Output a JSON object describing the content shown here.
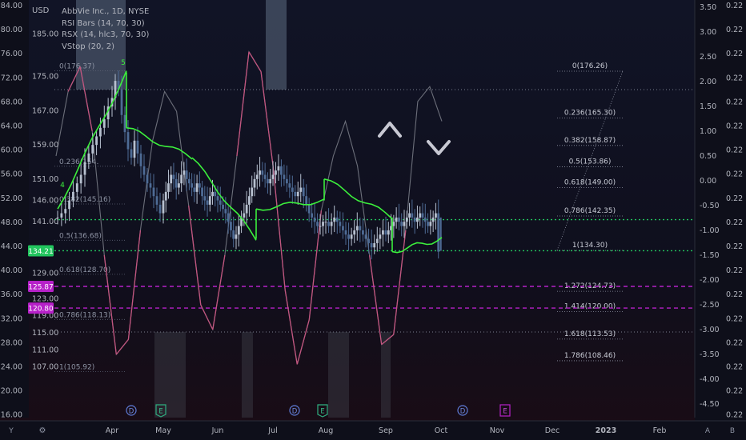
{
  "legend": {
    "currency": "USD",
    "symbol": "AbbVie Inc., 1D, NYSE",
    "indicators": [
      "RSI Bars (14, 70, 30)",
      "RSX (14, hlc3, 70, 30)",
      "VStop (20, 2)"
    ]
  },
  "axes": {
    "left_outer_ticks": [
      "84.00",
      "80.00",
      "76.00",
      "72.00",
      "68.00",
      "64.00",
      "60.00",
      "56.00",
      "52.00",
      "48.00",
      "44.00",
      "40.00",
      "36.00",
      "32.00",
      "28.00",
      "24.00",
      "20.00",
      "16.00"
    ],
    "left_inner_ticks": [
      "185.00",
      "175.00",
      "167.00",
      "159.00",
      "151.00",
      "146.00",
      "141.00",
      "129.00",
      "123.00",
      "119.00",
      "115.00",
      "111.00",
      "107.00"
    ],
    "right_inner_ticks": [
      "3.50",
      "3.00",
      "2.50",
      "2.00",
      "1.50",
      "1.00",
      "0.50",
      "0.00",
      "-0.50",
      "-1.00",
      "-1.50",
      "-2.00",
      "-2.50",
      "-3.00",
      "-3.50",
      "-4.00",
      "-4.50"
    ],
    "right_outer_tick": "0.22",
    "right_outer_count": 18,
    "x_labels": [
      "Apr",
      "May",
      "Jun",
      "Jul",
      "Aug",
      "Sep",
      "Oct",
      "Nov",
      "Dec",
      "2023",
      "Feb"
    ]
  },
  "price_tags": [
    {
      "label": "134.21",
      "color": "#22c55e"
    },
    {
      "label": "125.87",
      "color": "#b620c8"
    },
    {
      "label": "120.80",
      "color": "#b620c8"
    }
  ],
  "fib_right": [
    {
      "label": "0(176.26)",
      "value": 176.26
    },
    {
      "label": "0.236(165.30)",
      "value": 165.3
    },
    {
      "label": "0.382(158.87)",
      "value": 158.87
    },
    {
      "label": "0.5(153.86)",
      "value": 153.86
    },
    {
      "label": "0.618(149.00)",
      "value": 149.0
    },
    {
      "label": "0.786(142.35)",
      "value": 142.35
    },
    {
      "label": "1(134.30)",
      "value": 134.3
    },
    {
      "label": "1.272(124.73)",
      "value": 124.73
    },
    {
      "label": "1.414(120.00)",
      "value": 120.0
    },
    {
      "label": "1.618(113.53)",
      "value": 113.53
    },
    {
      "label": "1.786(108.46)",
      "value": 108.46
    }
  ],
  "fib_left": [
    {
      "label": "0(176.37)",
      "value": 176.37
    },
    {
      "label": "0.236(154.",
      "value": 154.0
    },
    {
      "label": "0.382(145.16)",
      "value": 145.16
    },
    {
      "label": "0.5(136.68)",
      "value": 136.68
    },
    {
      "label": "0.618(128.70)",
      "value": 128.7
    },
    {
      "label": "0.786(118.13)",
      "value": 118.13
    },
    {
      "label": "1(105.92)",
      "value": 105.92
    }
  ],
  "event_markers": [
    {
      "letter": "D",
      "kind": "dividend"
    },
    {
      "letter": "E",
      "kind": "earnings"
    },
    {
      "letter": "D",
      "kind": "dividend"
    },
    {
      "letter": "E",
      "kind": "earnings"
    },
    {
      "letter": "D",
      "kind": "dividend"
    },
    {
      "letter": "E",
      "kind": "earnings"
    }
  ],
  "pivot_label": "5",
  "pivot_label_low": "4",
  "corner_labels": {
    "bottom_left": "Y",
    "gear": "⚙",
    "auto": "A",
    "log": "B"
  },
  "chart_data": {
    "type": "line",
    "title": "AbbVie Inc., 1D, NYSE",
    "currency": "USD",
    "ylim_price": [
      104,
      191
    ],
    "ylim_osc": [
      -4.6,
      3.6
    ],
    "ylim_scale_left": [
      16,
      84
    ],
    "x_range_months": [
      "Mar",
      "Mar (2023)"
    ],
    "close_series": [
      {
        "month": "Mar",
        "values": [
          142,
          143,
          144,
          146,
          148,
          150,
          152,
          155,
          157,
          159,
          161,
          163,
          165,
          168
        ]
      },
      {
        "month": "Apr",
        "values": [
          170,
          174,
          172,
          166,
          162,
          158,
          156,
          160,
          157,
          154,
          152,
          150,
          149,
          147,
          145,
          143
        ]
      },
      {
        "month": "May",
        "values": [
          146,
          148,
          150,
          152,
          151,
          149,
          150,
          152,
          153,
          151,
          150,
          149,
          148,
          150,
          149,
          147,
          146,
          145,
          147,
          148,
          147
        ]
      },
      {
        "month": "Jun",
        "values": [
          146,
          145,
          144,
          143,
          141,
          139,
          137,
          138,
          140,
          142,
          143,
          145,
          147,
          149,
          151,
          152,
          153,
          152,
          151,
          150,
          151
        ]
      },
      {
        "month": "Jul",
        "values": [
          152,
          153,
          154,
          152,
          151,
          150,
          149,
          148,
          147,
          148,
          149,
          147,
          145,
          143,
          142,
          141,
          140,
          140,
          141
        ]
      },
      {
        "month": "Aug",
        "values": [
          141,
          140,
          141,
          142,
          141,
          140,
          139,
          138,
          137,
          138,
          139,
          140,
          139,
          138,
          137,
          136,
          135,
          136,
          137,
          138,
          139
        ]
      },
      {
        "month": "Sep",
        "values": [
          138,
          139,
          140,
          141,
          142,
          141,
          140,
          141,
          142,
          143,
          142,
          141,
          142,
          143,
          142,
          141,
          140,
          141,
          142,
          143,
          134
        ]
      }
    ],
    "vstop_levels": [
      {
        "from": "Mar",
        "to": "mid Apr",
        "start": 144,
        "end": 176,
        "side": "support"
      },
      {
        "from": "mid Apr",
        "to": "late May",
        "start": 163,
        "end": 156,
        "side": "resistance"
      },
      {
        "from": "late May",
        "to": "late Jun",
        "start": 156,
        "end": 137,
        "side": "resistance"
      },
      {
        "from": "late Jun",
        "to": "mid Aug",
        "start": 144,
        "end": 146,
        "side": "support"
      },
      {
        "from": "mid Aug",
        "to": "early Sep",
        "start": 151,
        "end": 142,
        "side": "resistance"
      },
      {
        "from": "early Sep",
        "to": "end Sep",
        "start": 134,
        "end": 137,
        "side": "support"
      }
    ],
    "rsx_series": [
      0.5,
      1.8,
      2.3,
      1.0,
      -1.5,
      -3.5,
      -3.2,
      -1.0,
      0.8,
      1.8,
      1.4,
      -0.5,
      -2.5,
      -3.0,
      -1.5,
      0.5,
      2.6,
      2.2,
      0.3,
      -2.2,
      -3.7,
      -2.8,
      -0.6,
      0.5,
      1.2,
      0.3,
      -1.5,
      -3.3,
      -3.1,
      -1.0,
      1.6,
      1.9,
      1.2
    ],
    "horizontal_levels": [
      {
        "price": 141.5,
        "color": "#22c55e",
        "style": "dotted"
      },
      {
        "price": 134.21,
        "color": "#22c55e",
        "style": "dotted"
      },
      {
        "price": 125.87,
        "color": "#b620c8",
        "style": "dashed"
      },
      {
        "price": 120.8,
        "color": "#b620c8",
        "style": "dashed"
      }
    ],
    "annotations": [
      {
        "type": "chevron-up",
        "near": "late Sep"
      },
      {
        "type": "chevron-down",
        "near": "late Sep"
      }
    ]
  }
}
